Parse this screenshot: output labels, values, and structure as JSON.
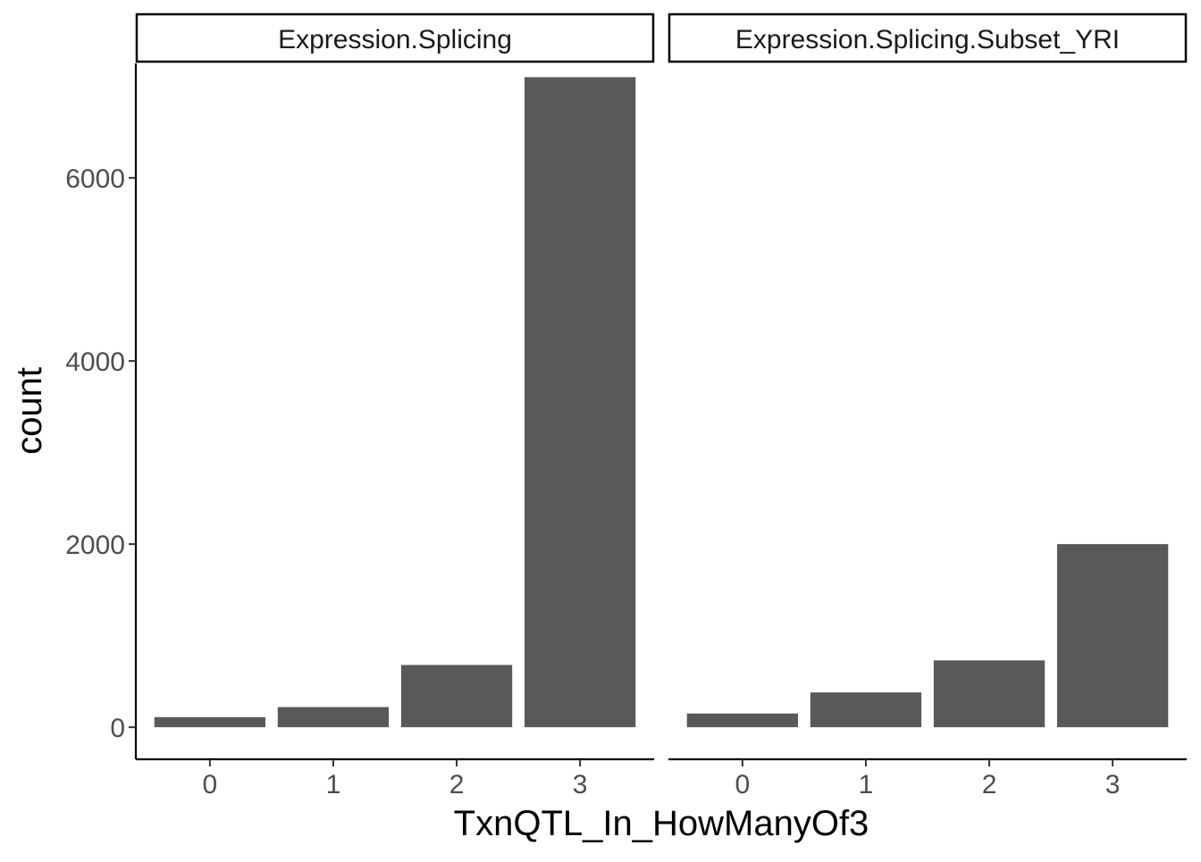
{
  "chart_data": {
    "type": "bar",
    "facet_variable": "panel",
    "xlabel": "TxnQTL_In_HowManyOf3",
    "ylabel": "count",
    "categories": [
      "0",
      "1",
      "2",
      "3"
    ],
    "ylim": [
      -350,
      7250
    ],
    "y_ticks": [
      0,
      2000,
      4000,
      6000
    ],
    "y_tick_labels": [
      "0",
      "2000",
      "4000",
      "6000"
    ],
    "grid": false,
    "bar_color": "#595959",
    "panels": [
      {
        "label": "Expression.Splicing",
        "values": [
          110,
          220,
          680,
          7100
        ]
      },
      {
        "label": "Expression.Splicing.Subset_YRI",
        "values": [
          150,
          380,
          730,
          2000
        ]
      }
    ]
  }
}
